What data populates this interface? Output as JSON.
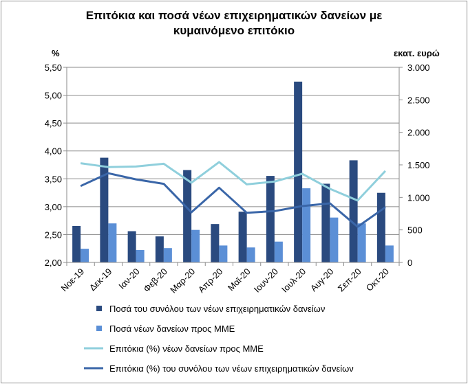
{
  "chart_data": {
    "type": "bar",
    "title": "Επιτόκια και ποσά νέων επιχειρηματικών δανείων με κυμαινόμενο επιτόκιο",
    "title_lines": [
      "Επιτόκια και ποσά νέων επιχειρηματικών  δανείων με",
      "κυμαινόμενο επιτόκιο"
    ],
    "left_axis": {
      "label": "%",
      "range": [
        2.0,
        5.5
      ],
      "ticks": [
        "2,00",
        "2,50",
        "3,00",
        "3,50",
        "4,00",
        "4,50",
        "5,00",
        "5,50"
      ],
      "tick_values": [
        2.0,
        2.5,
        3.0,
        3.5,
        4.0,
        4.5,
        5.0,
        5.5
      ]
    },
    "right_axis": {
      "label": "εκατ. ευρώ",
      "range": [
        0,
        3000
      ],
      "ticks": [
        "0",
        "500",
        "1.000",
        "1.500",
        "2.000",
        "2.500",
        "3.000"
      ],
      "tick_values": [
        0,
        500,
        1000,
        1500,
        2000,
        2500,
        3000
      ]
    },
    "categories": [
      "Νοε-19",
      "Δεκ-19",
      "Ιαν-20",
      "Φεβ-20",
      "Μαρ-20",
      "Απρ-20",
      "Μαϊ-20",
      "Ιουν-20",
      "Ιουλ-20",
      "Αυγ-20",
      "Σεπ-20",
      "Οκτ-20"
    ],
    "series": [
      {
        "name": "Ποσά του συνόλου των νέων επιχειρηματικών δανείων",
        "kind": "bar",
        "axis": "right",
        "color": "#2a4a7f",
        "values": [
          560,
          1610,
          480,
          400,
          1420,
          590,
          780,
          1330,
          2780,
          1210,
          1570,
          1070
        ]
      },
      {
        "name": "Ποσά νέων δανείων προς ΜΜΕ",
        "kind": "bar",
        "axis": "right",
        "color": "#5b8fd6",
        "values": [
          210,
          600,
          190,
          220,
          500,
          260,
          230,
          320,
          1140,
          690,
          600,
          260
        ]
      },
      {
        "name": "Επιτόκια (%) νέων δανείων προς ΜΜΕ",
        "kind": "line",
        "axis": "left",
        "color": "#8fcfdc",
        "values": [
          3.78,
          3.71,
          3.72,
          3.77,
          3.43,
          3.8,
          3.4,
          3.45,
          3.59,
          3.32,
          3.11,
          3.64
        ]
      },
      {
        "name": "Επιτόκια (%) του συνόλου των νέων επιχειρηματικών δανείων",
        "kind": "line",
        "axis": "left",
        "color": "#3a66a8",
        "values": [
          3.37,
          3.6,
          3.49,
          3.41,
          2.9,
          3.34,
          2.89,
          2.92,
          3.01,
          3.06,
          2.64,
          2.99
        ]
      }
    ],
    "grid": "horizontal",
    "legend_position": "bottom"
  }
}
